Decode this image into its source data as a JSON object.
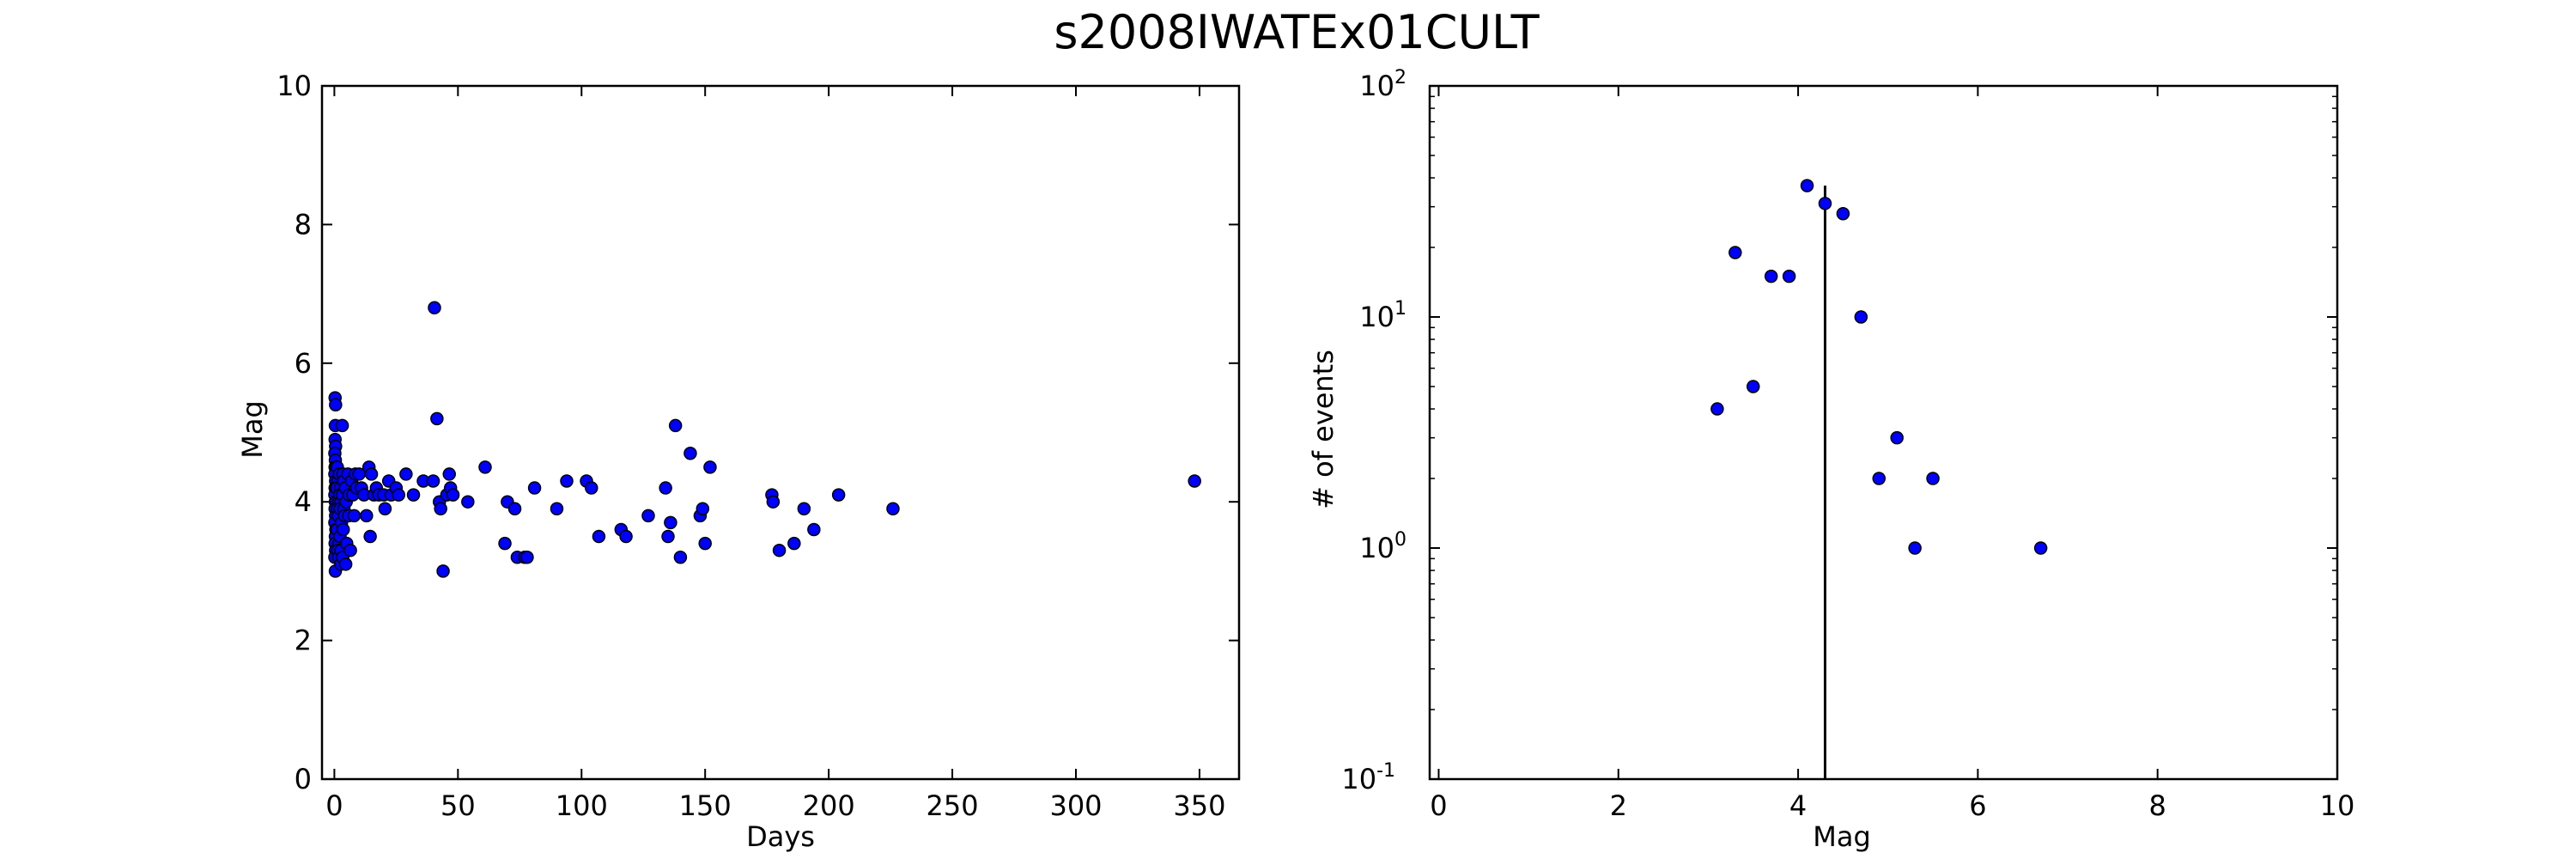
{
  "figure": {
    "suptitle": "s2008IWATEx01CULT"
  },
  "chart_data": [
    {
      "type": "scatter",
      "xlabel": "Days",
      "ylabel": "Mag",
      "xlim": [
        -5,
        366
      ],
      "ylim": [
        0,
        10
      ],
      "xticks": [
        0,
        50,
        100,
        150,
        200,
        250,
        300,
        350
      ],
      "yticks": [
        0,
        2,
        4,
        6,
        8,
        10
      ],
      "grid": false,
      "marker_color": "#0000ff",
      "points": [
        [
          0.3,
          5.5
        ],
        [
          0.5,
          5.4
        ],
        [
          0.4,
          5.1
        ],
        [
          0.3,
          4.9
        ],
        [
          0.5,
          4.8
        ],
        [
          0.2,
          4.7
        ],
        [
          0.4,
          4.6
        ],
        [
          0.3,
          4.5
        ],
        [
          0.6,
          4.5
        ],
        [
          0.2,
          4.4
        ],
        [
          0.5,
          4.3
        ],
        [
          0.3,
          4.2
        ],
        [
          0.6,
          4.2
        ],
        [
          0.2,
          4.1
        ],
        [
          0.4,
          4.0
        ],
        [
          0.7,
          4.0
        ],
        [
          0.3,
          3.9
        ],
        [
          0.5,
          3.8
        ],
        [
          0.2,
          3.7
        ],
        [
          0.6,
          3.6
        ],
        [
          0.4,
          3.5
        ],
        [
          0.3,
          3.4
        ],
        [
          0.5,
          3.3
        ],
        [
          0.2,
          3.2
        ],
        [
          0.4,
          3.0
        ],
        [
          1.2,
          4.5
        ],
        [
          1.5,
          4.3
        ],
        [
          1.0,
          4.2
        ],
        [
          1.8,
          4.0
        ],
        [
          1.3,
          3.9
        ],
        [
          1.6,
          3.8
        ],
        [
          1.1,
          3.6
        ],
        [
          1.9,
          3.4
        ],
        [
          1.4,
          3.3
        ],
        [
          1.7,
          3.2
        ],
        [
          2.1,
          4.4
        ],
        [
          2.5,
          4.2
        ],
        [
          2.2,
          4.1
        ],
        [
          2.8,
          4.0
        ],
        [
          2.4,
          3.9
        ],
        [
          2.9,
          3.7
        ],
        [
          2.3,
          3.5
        ],
        [
          2.7,
          3.3
        ],
        [
          2.6,
          3.1
        ],
        [
          3.2,
          5.1
        ],
        [
          3.5,
          4.4
        ],
        [
          3.8,
          4.3
        ],
        [
          3.3,
          4.1
        ],
        [
          3.9,
          3.9
        ],
        [
          3.6,
          3.6
        ],
        [
          3.4,
          3.2
        ],
        [
          4.5,
          4.2
        ],
        [
          4.8,
          4.0
        ],
        [
          4.2,
          3.8
        ],
        [
          5.0,
          3.4
        ],
        [
          4.6,
          3.1
        ],
        [
          5.5,
          4.4
        ],
        [
          6.0,
          4.1
        ],
        [
          5.8,
          3.8
        ],
        [
          6.5,
          3.3
        ],
        [
          7.0,
          4.3
        ],
        [
          7.5,
          4.1
        ],
        [
          8.0,
          3.8
        ],
        [
          8.5,
          4.4
        ],
        [
          9.0,
          4.2
        ],
        [
          10.0,
          4.4
        ],
        [
          11.0,
          4.2
        ],
        [
          12.0,
          4.1
        ],
        [
          13.0,
          3.8
        ],
        [
          14.0,
          4.5
        ],
        [
          15.0,
          4.4
        ],
        [
          16.0,
          4.1
        ],
        [
          17.0,
          4.2
        ],
        [
          14.5,
          3.5
        ],
        [
          18.0,
          4.1
        ],
        [
          20.0,
          4.1
        ],
        [
          20.5,
          3.9
        ],
        [
          22.0,
          4.3
        ],
        [
          23.0,
          4.1
        ],
        [
          25.0,
          4.2
        ],
        [
          26.0,
          4.1
        ],
        [
          29.0,
          4.4
        ],
        [
          32.0,
          4.1
        ],
        [
          36.0,
          4.3
        ],
        [
          40.0,
          4.3
        ],
        [
          40.5,
          6.8
        ],
        [
          41.5,
          5.2
        ],
        [
          42.5,
          4.0
        ],
        [
          43.0,
          3.9
        ],
        [
          44.0,
          3.0
        ],
        [
          45.5,
          4.1
        ],
        [
          46.5,
          4.4
        ],
        [
          47.0,
          4.2
        ],
        [
          48.0,
          4.1
        ],
        [
          54.0,
          4.0
        ],
        [
          61.0,
          4.5
        ],
        [
          69.0,
          3.4
        ],
        [
          70.0,
          4.0
        ],
        [
          73.0,
          3.9
        ],
        [
          74.0,
          3.2
        ],
        [
          77.0,
          3.2
        ],
        [
          78.0,
          3.2
        ],
        [
          81.0,
          4.2
        ],
        [
          90.0,
          3.9
        ],
        [
          94.0,
          4.3
        ],
        [
          102.0,
          4.3
        ],
        [
          104.0,
          4.2
        ],
        [
          107.0,
          3.5
        ],
        [
          116.0,
          3.6
        ],
        [
          118.0,
          3.5
        ],
        [
          127.0,
          3.8
        ],
        [
          134.0,
          4.2
        ],
        [
          135.0,
          3.5
        ],
        [
          136.0,
          3.7
        ],
        [
          138.0,
          5.1
        ],
        [
          140.0,
          3.2
        ],
        [
          144.0,
          4.7
        ],
        [
          148.0,
          3.8
        ],
        [
          149.0,
          3.9
        ],
        [
          150.0,
          3.4
        ],
        [
          152.0,
          4.5
        ],
        [
          177.0,
          4.1
        ],
        [
          177.5,
          4.0
        ],
        [
          180.0,
          3.3
        ],
        [
          186.0,
          3.4
        ],
        [
          190.0,
          3.9
        ],
        [
          194.0,
          3.6
        ],
        [
          204.0,
          4.1
        ],
        [
          226.0,
          3.9
        ],
        [
          348.0,
          4.3
        ]
      ]
    },
    {
      "type": "scatter",
      "xlabel": "Mag",
      "ylabel": "# of events",
      "xlim": [
        -0.1,
        10
      ],
      "ylim": [
        0.1,
        100
      ],
      "yscale": "log",
      "xticks": [
        0,
        2,
        4,
        6,
        8,
        10
      ],
      "yticks": [
        0.1,
        1,
        10,
        100
      ],
      "ytick_labels": [
        {
          "base": "10",
          "exp": "-1"
        },
        {
          "base": "10",
          "exp": "0"
        },
        {
          "base": "10",
          "exp": "1"
        },
        {
          "base": "10",
          "exp": "2"
        }
      ],
      "grid": false,
      "marker_color": "#0000ff",
      "vline": {
        "x": 4.3,
        "y_from": 0.1,
        "y_to": 37
      },
      "points": [
        [
          3.1,
          4
        ],
        [
          3.3,
          19
        ],
        [
          3.5,
          5
        ],
        [
          3.7,
          15
        ],
        [
          3.9,
          15
        ],
        [
          4.1,
          37
        ],
        [
          4.3,
          31
        ],
        [
          4.5,
          28
        ],
        [
          4.7,
          10
        ],
        [
          4.9,
          2
        ],
        [
          5.1,
          3
        ],
        [
          5.3,
          1
        ],
        [
          5.5,
          2
        ],
        [
          6.7,
          1
        ]
      ]
    }
  ]
}
